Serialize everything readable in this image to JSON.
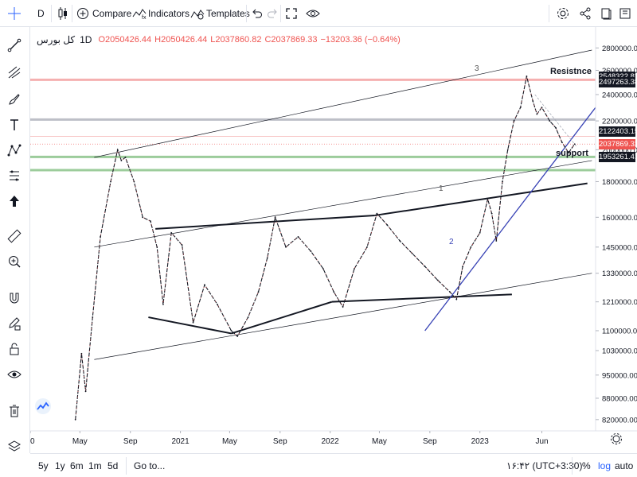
{
  "toolbar": {
    "timeframe": "D",
    "compare_label": "Compare",
    "indicators_label": "Indicators",
    "templates_label": "Templates"
  },
  "legend": {
    "symbol": "کل بورس",
    "timeframe": "1D",
    "open": "O2050426.44",
    "high": "H2050426.44",
    "low": "L2037860.82",
    "close": "C2037869.33",
    "change": "−13203.36 (−0.64%)"
  },
  "annotations": {
    "resistance": "Resistnce",
    "support": "support",
    "wave_1": "1",
    "wave_2": "2",
    "wave_3": "3"
  },
  "price_tags": [
    {
      "label": "2548322.82",
      "value": 2548322.82,
      "color": "#131722"
    },
    {
      "label": "2497263.38",
      "value": 2497263.38,
      "color": "#131722"
    },
    {
      "label": "2122403.15",
      "value": 2122403.15,
      "color": "#131722"
    },
    {
      "label": "2037869.33",
      "value": 2037869.33,
      "color": "#ef5350"
    },
    {
      "label": "1953261.41",
      "value": 1953261.41,
      "color": "#131722"
    }
  ],
  "bottom": {
    "ranges": [
      "5y",
      "1y",
      "6m",
      "1m",
      "5d"
    ],
    "goto_label": "Go to...",
    "time": "۱۶:۴۲ (UTC+3:30)",
    "percent": "%",
    "log": "log",
    "auto": "auto"
  },
  "colors": {
    "up": "#131722",
    "accent": "#2962ff",
    "resistance_line": "#f4a3a3",
    "support_line": "#8bc48a",
    "grey_line": "#b2b5be",
    "trend_blue": "#3742b5"
  },
  "chart_data": {
    "type": "line",
    "scale": "log",
    "y_axis_ticks": [
      2800000,
      2600000,
      2400000,
      2200000,
      2000000,
      1800000,
      1600000,
      1450000,
      1330000,
      1210000,
      1100000,
      1030000,
      950000,
      880000,
      820000
    ],
    "y_axis_labels": [
      "2800000.00",
      "2600000.00",
      "2400000.00",
      "2200000.00",
      "2000000.00",
      "1800000.00",
      "1600000.00",
      "1450000.00",
      "1330000.00",
      "1210000.00",
      "1100000.00",
      "1030000.00",
      "950000.00",
      "880000.00",
      "820000.00"
    ],
    "x_axis_ticks": [
      "2020-01-01",
      "2020-05-01",
      "2020-09-01",
      "2021-01-01",
      "2021-05-01",
      "2021-09-01",
      "2022-01-01",
      "2022-05-01",
      "2022-09-01",
      "2023-01-01",
      "2023-06-01"
    ],
    "x_axis_labels": [
      "20",
      "May",
      "Sep",
      "2021",
      "May",
      "Sep",
      "2022",
      "May",
      "Sep",
      "2023",
      "Jun"
    ],
    "x_range": [
      "2020-01-01",
      "2023-10-10"
    ],
    "y_range": [
      790000,
      3000000
    ],
    "series": [
      {
        "type": "line",
        "x": [
          "2020-04-20",
          "2020-05-05",
          "2020-05-15",
          "2020-06-01",
          "2020-06-20",
          "2020-07-15",
          "2020-08-01",
          "2020-08-10",
          "2020-08-20",
          "2020-09-10",
          "2020-10-01",
          "2020-10-20",
          "2020-11-05",
          "2020-11-20",
          "2020-12-10",
          "2021-01-05",
          "2021-02-01",
          "2021-03-01",
          "2021-04-01",
          "2021-05-05",
          "2021-05-20",
          "2021-06-15",
          "2021-07-10",
          "2021-08-01",
          "2021-08-20",
          "2021-09-15",
          "2021-10-15",
          "2021-11-15",
          "2021-12-15",
          "2022-01-10",
          "2022-02-01",
          "2022-03-01",
          "2022-04-01",
          "2022-04-25",
          "2022-05-20",
          "2022-06-20",
          "2022-07-20",
          "2022-08-20",
          "2022-09-20",
          "2022-10-20",
          "2022-11-05",
          "2022-11-20",
          "2022-12-10",
          "2023-01-01",
          "2023-01-20",
          "2023-01-30",
          "2023-02-10",
          "2023-02-25",
          "2023-03-10",
          "2023-03-25",
          "2023-04-10",
          "2023-04-25",
          "2023-05-10",
          "2023-05-20",
          "2023-06-01",
          "2023-06-20",
          "2023-07-05",
          "2023-07-20",
          "2023-08-05",
          "2023-08-20"
        ],
        "y": [
          820000,
          1020000,
          900000,
          1150000,
          1500000,
          1800000,
          2000000,
          1930000,
          1950000,
          1800000,
          1600000,
          1580000,
          1450000,
          1200000,
          1520000,
          1460000,
          1130000,
          1280000,
          1200000,
          1100000,
          1080000,
          1150000,
          1250000,
          1400000,
          1600000,
          1450000,
          1500000,
          1430000,
          1350000,
          1250000,
          1190000,
          1350000,
          1450000,
          1620000,
          1560000,
          1480000,
          1420000,
          1360000,
          1300000,
          1250000,
          1220000,
          1360000,
          1450000,
          1520000,
          1700000,
          1620000,
          1480000,
          1800000,
          2000000,
          2200000,
          2300000,
          2550000,
          2350000,
          2250000,
          2300000,
          2200000,
          2150000,
          2050000,
          1980000,
          2037869
        ]
      }
    ],
    "horizontal_levels": [
      {
        "label": "Resistnce",
        "value": 2520000
      },
      {
        "value": 2210000
      },
      {
        "value": 2090000
      },
      {
        "label": "support",
        "value": 1953261.41
      },
      {
        "value": 1870000
      }
    ],
    "trendlines": [
      {
        "kind": "channel",
        "from": [
          "2020-06-05",
          1950000
        ],
        "to": [
          "2023-10-01",
          2780000
        ]
      },
      {
        "kind": "channel",
        "from": [
          "2020-06-05",
          1450000
        ],
        "to": [
          "2023-10-01",
          1930000
        ]
      },
      {
        "kind": "channel",
        "from": [
          "2020-06-05",
          1000000
        ],
        "to": [
          "2023-10-01",
          1330000
        ]
      },
      {
        "kind": "wedge",
        "from": [
          "2020-11-01",
          1540000
        ],
        "to": [
          "2022-04-20",
          1610000
        ]
      },
      {
        "kind": "wedge",
        "from": [
          "2022-04-20",
          1610000
        ],
        "to": [
          "2023-09-20",
          1790000
        ]
      },
      {
        "kind": "wedge",
        "from": [
          "2020-10-15",
          1150000
        ],
        "to": [
          "2021-05-05",
          1090000
        ]
      },
      {
        "kind": "wedge",
        "from": [
          "2021-05-05",
          1090000
        ],
        "to": [
          "2022-01-05",
          1210000
        ]
      },
      {
        "kind": "wedge",
        "from": [
          "2022-01-05",
          1210000
        ],
        "to": [
          "2023-03-20",
          1240000
        ]
      },
      {
        "kind": "blue",
        "from": [
          "2022-08-20",
          1100000
        ],
        "to": [
          "2023-10-10",
          2300000
        ]
      }
    ]
  }
}
